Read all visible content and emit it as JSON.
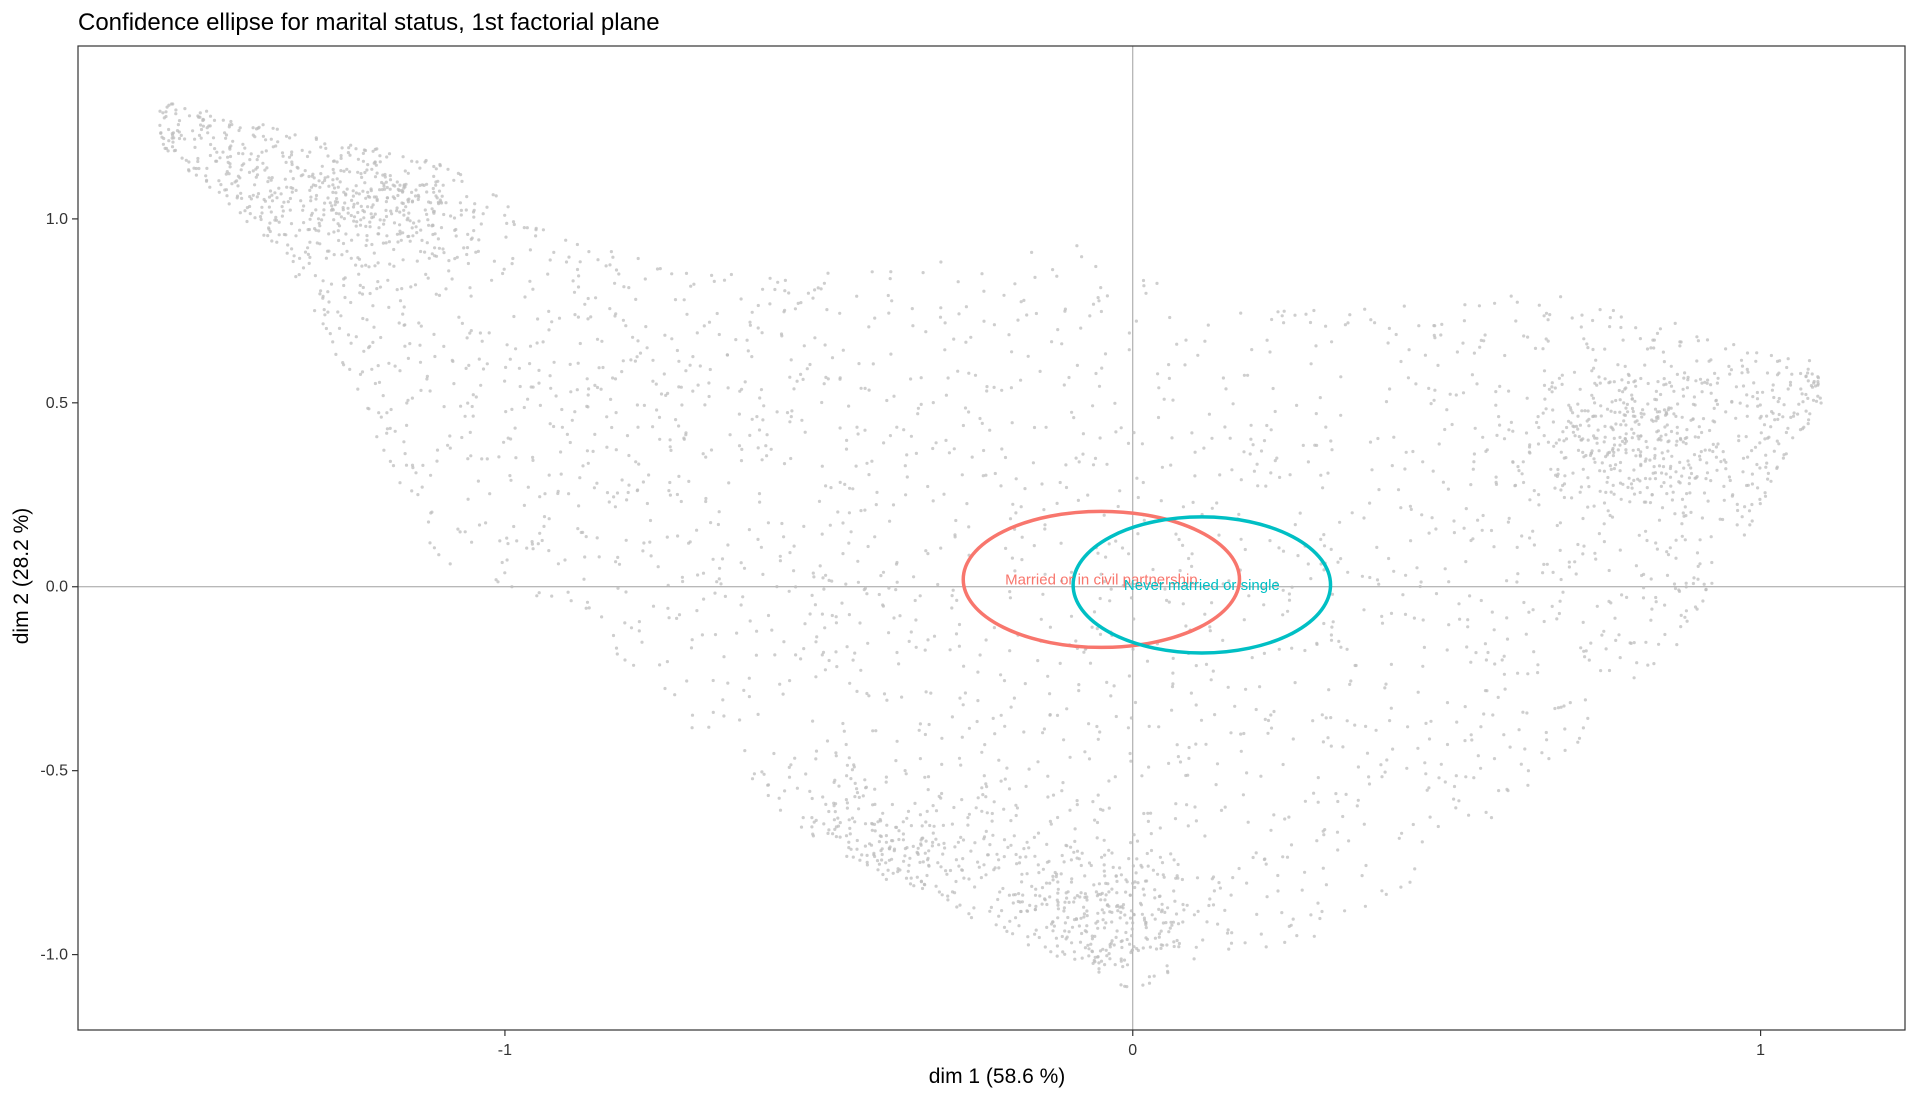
{
  "chart_data": {
    "type": "scatter",
    "title": "Confidence ellipse for marital status, 1st factorial plane",
    "xlabel": "dim 1 (58.6 %)",
    "ylabel": "dim 2 (28.2 %)",
    "xlim": [
      -1.68,
      1.23
    ],
    "ylim": [
      -1.205,
      1.47
    ],
    "x_ticks": [
      {
        "value": -1,
        "label": "-1"
      },
      {
        "value": 0,
        "label": "0"
      },
      {
        "value": 1,
        "label": "1"
      }
    ],
    "y_ticks": [
      {
        "value": -1.0,
        "label": "-1.0"
      },
      {
        "value": -0.5,
        "label": "-0.5"
      },
      {
        "value": 0.0,
        "label": "0.0"
      },
      {
        "value": 0.5,
        "label": "0.5"
      },
      {
        "value": 1.0,
        "label": "1.0"
      }
    ],
    "reference_lines": {
      "x": 0,
      "y": 0
    },
    "grid": false,
    "point_color": "#BDBDBD",
    "point_cloud_envelope": {
      "x": [
        -1.55,
        -1.35,
        -1.1,
        -0.9,
        -0.7,
        -0.5,
        -0.3,
        -0.1,
        0.0,
        0.1,
        0.3,
        0.5,
        0.7,
        0.9,
        1.05,
        1.1
      ],
      "y_upper": [
        1.32,
        1.25,
        1.15,
        0.95,
        0.85,
        0.85,
        0.9,
        0.95,
        0.85,
        0.8,
        0.75,
        0.78,
        0.8,
        0.7,
        0.62,
        0.62
      ],
      "y_lower": [
        1.2,
        0.9,
        0.05,
        -0.05,
        -0.4,
        -0.7,
        -0.88,
        -1.02,
        -1.1,
        -1.02,
        -0.95,
        -0.75,
        -0.45,
        -0.1,
        0.38,
        0.5
      ]
    },
    "point_density_clusters": [
      {
        "x": -1.2,
        "y": 1.05,
        "sd_x": 0.09,
        "sd_y": 0.1
      },
      {
        "x": -0.4,
        "y": -0.7,
        "sd_x": 0.15,
        "sd_y": 0.1
      },
      {
        "x": -0.05,
        "y": -0.9,
        "sd_x": 0.1,
        "sd_y": 0.1
      },
      {
        "x": 0.8,
        "y": 0.4,
        "sd_x": 0.1,
        "sd_y": 0.1
      }
    ],
    "series": [
      {
        "name": "Married or in civil partnership",
        "color": "#F8766D",
        "center": [
          -0.05,
          0.02
        ],
        "semi_axes": [
          0.22,
          0.185
        ]
      },
      {
        "name": "Never married or single",
        "color": "#00BFC4",
        "center": [
          0.11,
          0.005
        ],
        "semi_axes": [
          0.205,
          0.185
        ]
      }
    ]
  }
}
